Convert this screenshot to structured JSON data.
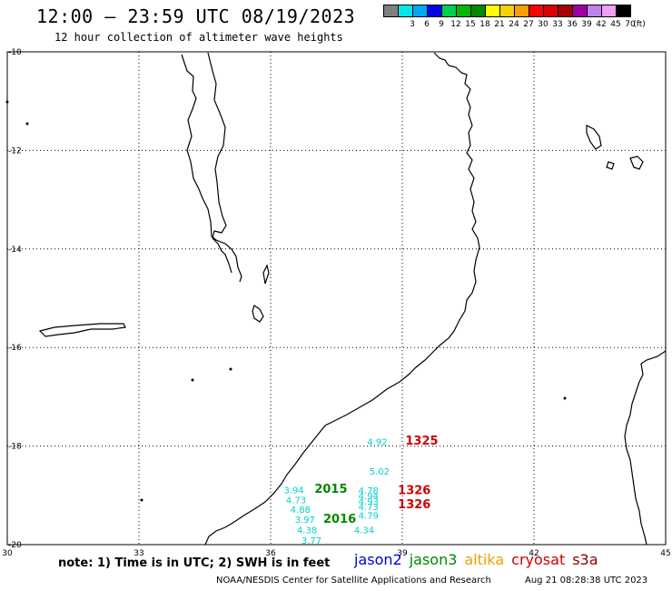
{
  "header": {
    "title": "12:00 – 23:59 UTC 08/19/2023",
    "subtitle": "12 hour collection of altimeter wave heights"
  },
  "legend": {
    "unit": "(ft)",
    "swatches": [
      {
        "color": "#808080",
        "label": ""
      },
      {
        "color": "#00e8e8",
        "label": "3"
      },
      {
        "color": "#00a8f8",
        "label": "6"
      },
      {
        "color": "#0000f0",
        "label": "9"
      },
      {
        "color": "#00d050",
        "label": "12"
      },
      {
        "color": "#00b800",
        "label": "15"
      },
      {
        "color": "#008800",
        "label": "18"
      },
      {
        "color": "#ffff00",
        "label": "21"
      },
      {
        "color": "#f8d000",
        "label": "24"
      },
      {
        "color": "#f8a000",
        "label": "27"
      },
      {
        "color": "#ff0000",
        "label": "30"
      },
      {
        "color": "#d80000",
        "label": "33"
      },
      {
        "color": "#a80000",
        "label": "36"
      },
      {
        "color": "#a000a0",
        "label": "39"
      },
      {
        "color": "#c080f0",
        "label": "42"
      },
      {
        "color": "#f0a0f0",
        "label": "45"
      },
      {
        "color": "#000000",
        "label": "70"
      }
    ]
  },
  "map": {
    "lat_ticks": [
      "-10",
      "-12",
      "-14",
      "-16",
      "-18",
      "-20"
    ],
    "lon_ticks": [
      "30",
      "33",
      "36",
      "39",
      "42",
      "45"
    ],
    "measurements": [
      {
        "text": "4.92",
        "color": "#00d0d0",
        "lon": 38.2,
        "lat": -17.98
      },
      {
        "text": "1325",
        "color": "#cc0000",
        "lon": 39.07,
        "lat": -17.97,
        "bold": true
      },
      {
        "text": "5.02",
        "color": "#00d0d0",
        "lon": 38.25,
        "lat": -18.58
      },
      {
        "text": "2015",
        "color": "#008800",
        "lon": 37.0,
        "lat": -18.95,
        "bold": true
      },
      {
        "text": "1326",
        "color": "#cc0000",
        "lon": 38.9,
        "lat": -18.98,
        "bold": true
      },
      {
        "text": "3.94",
        "color": "#00d0d0",
        "lon": 36.3,
        "lat": -18.96
      },
      {
        "text": "4.78",
        "color": "#00d0d0",
        "lon": 38.0,
        "lat": -18.97
      },
      {
        "text": "4.73",
        "color": "#00d0d0",
        "lon": 36.35,
        "lat": -19.16
      },
      {
        "text": "4.94",
        "color": "#00d0d0",
        "lon": 38.0,
        "lat": -19.08
      },
      {
        "text": "4.93",
        "color": "#00d0d0",
        "lon": 38.0,
        "lat": -19.19
      },
      {
        "text": "1326",
        "color": "#cc0000",
        "lon": 38.9,
        "lat": -19.26,
        "bold": true
      },
      {
        "text": "4.88",
        "color": "#00d0d0",
        "lon": 36.45,
        "lat": -19.35
      },
      {
        "text": "4.73",
        "color": "#00d0d0",
        "lon": 38.0,
        "lat": -19.3
      },
      {
        "text": "4.79",
        "color": "#00d0d0",
        "lon": 38.0,
        "lat": -19.47
      },
      {
        "text": "2016",
        "color": "#008800",
        "lon": 37.2,
        "lat": -19.56,
        "bold": true
      },
      {
        "text": "3.97",
        "color": "#00d0d0",
        "lon": 36.55,
        "lat": -19.56
      },
      {
        "text": "4.38",
        "color": "#00d0d0",
        "lon": 36.6,
        "lat": -19.77
      },
      {
        "text": "4.34",
        "color": "#00d0d0",
        "lon": 37.9,
        "lat": -19.77
      },
      {
        "text": "3.77",
        "color": "#00d0d0",
        "lon": 36.7,
        "lat": -19.98
      }
    ]
  },
  "footer": {
    "note": "note: 1) Time is in UTC; 2) SWH is in feet",
    "satellites": [
      {
        "name": "jason2",
        "color": "#0000dd"
      },
      {
        "name": "jason3",
        "color": "#008800"
      },
      {
        "name": "altika",
        "color": "#f0a000"
      },
      {
        "name": "cryosat",
        "color": "#cc0000"
      },
      {
        "name": "s3a",
        "color": "#880000"
      }
    ],
    "credit": "NOAA/NESDIS Center for Satellite Applications and Research",
    "timestamp": "Aug 21 08:28:38 UTC 2023"
  }
}
